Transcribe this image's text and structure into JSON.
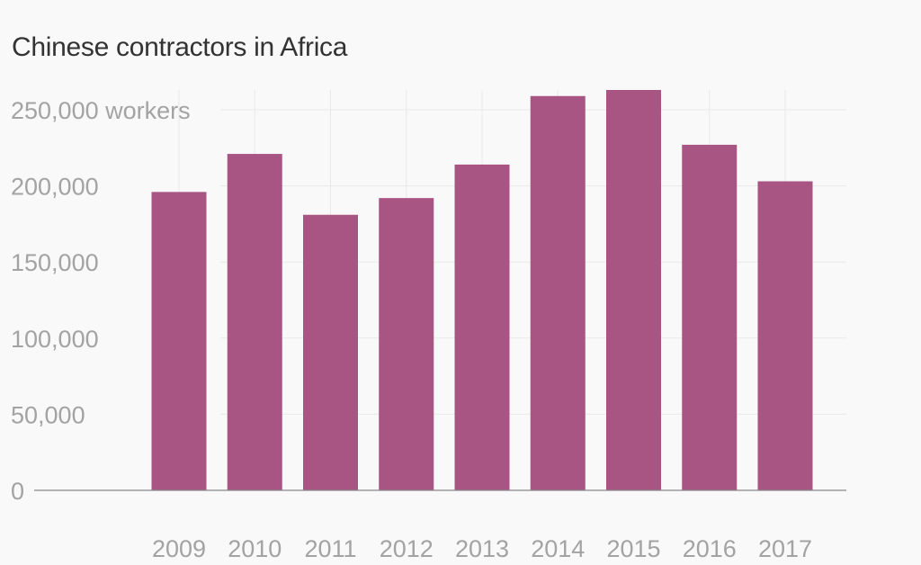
{
  "chart_data": {
    "type": "bar",
    "title": "Chinese contractors in Africa",
    "categories": [
      "2009",
      "2010",
      "2011",
      "2012",
      "2013",
      "2014",
      "2015",
      "2016",
      "2017"
    ],
    "series": [
      {
        "values": [
          196000,
          221000,
          181000,
          192000,
          214000,
          259000,
          263000,
          227000,
          203000
        ]
      }
    ],
    "ylim": [
      0,
      263000
    ],
    "yticks": [
      0,
      50000,
      100000,
      150000,
      200000,
      250000
    ],
    "ytick_labels": [
      "0",
      "50,000",
      "100,000",
      "150,000",
      "200,000",
      "250,000 workers"
    ],
    "grid": true,
    "colors": {
      "bar": "#a85584",
      "grid": "#e9e9e9",
      "axis": "#888888",
      "text": "#a3a3a3",
      "background": "#f9f9f9"
    }
  }
}
